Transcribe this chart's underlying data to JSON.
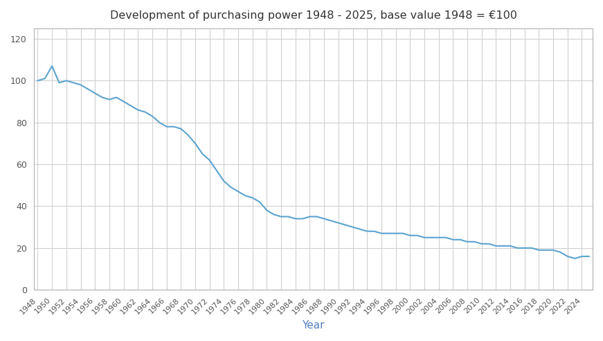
{
  "title": "Development of purchasing power 1948 - 2025, base value 1948 = €100",
  "xlabel": "Year",
  "line_color": "#5BA3D0",
  "background_color": "#ffffff",
  "grid_color": "#d0d0d0",
  "title_color": "#333333",
  "tick_label_color": "#555555",
  "xlabel_color": "#5080C0",
  "ylim": [
    0,
    125
  ],
  "yticks": [
    0,
    20,
    40,
    60,
    80,
    100,
    120
  ],
  "spine_color": "#b0b0b0",
  "years": [
    1948,
    1949,
    1950,
    1951,
    1952,
    1953,
    1954,
    1955,
    1956,
    1957,
    1958,
    1959,
    1960,
    1961,
    1962,
    1963,
    1964,
    1965,
    1966,
    1967,
    1968,
    1969,
    1970,
    1971,
    1972,
    1973,
    1974,
    1975,
    1976,
    1977,
    1978,
    1979,
    1980,
    1981,
    1982,
    1983,
    1984,
    1985,
    1986,
    1987,
    1988,
    1989,
    1990,
    1991,
    1992,
    1993,
    1994,
    1995,
    1996,
    1997,
    1998,
    1999,
    2000,
    2001,
    2002,
    2003,
    2004,
    2005,
    2006,
    2007,
    2008,
    2009,
    2010,
    2011,
    2012,
    2013,
    2014,
    2015,
    2016,
    2017,
    2018,
    2019,
    2020,
    2021,
    2022,
    2023,
    2024,
    2025
  ],
  "values": [
    100,
    101,
    107,
    99,
    100,
    99,
    98,
    96,
    94,
    92,
    91,
    92,
    90,
    88,
    86,
    85,
    83,
    80,
    78,
    78,
    77,
    74,
    70,
    65,
    62,
    57,
    52,
    49,
    47,
    45,
    44,
    42,
    38,
    36,
    35,
    35,
    34,
    34,
    35,
    35,
    34,
    33,
    32,
    31,
    30,
    29,
    28,
    28,
    27,
    27,
    27,
    27,
    26,
    26,
    25,
    25,
    25,
    25,
    24,
    24,
    23,
    23,
    22,
    22,
    21,
    21,
    21,
    20,
    20,
    20,
    19,
    19,
    19,
    18,
    16,
    15,
    16,
    16
  ]
}
